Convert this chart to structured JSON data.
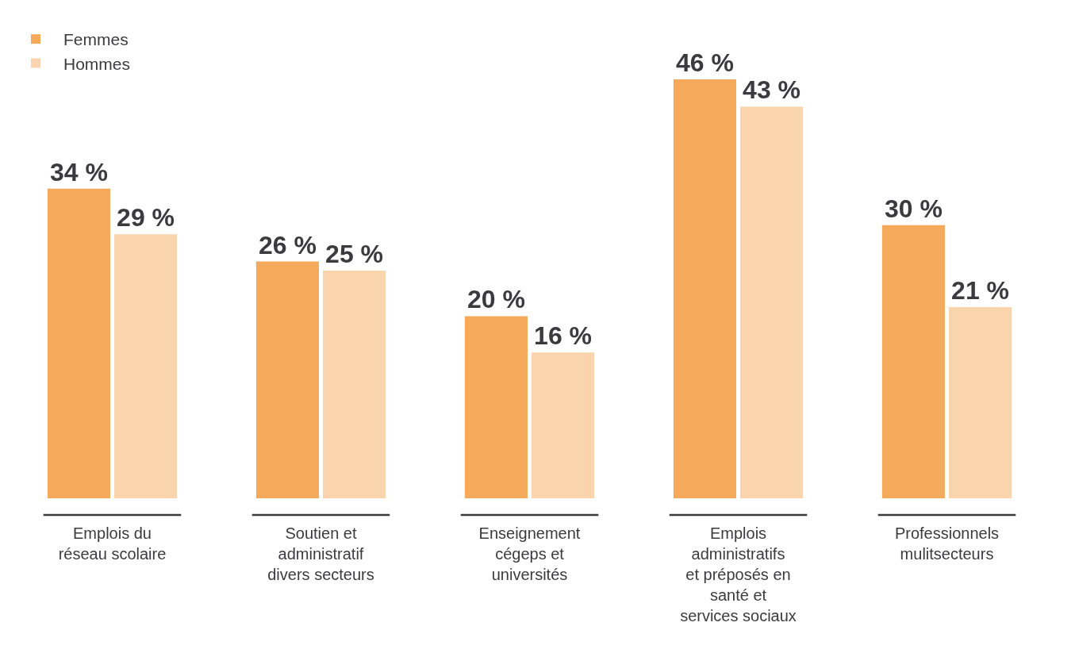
{
  "chart_data": {
    "type": "bar",
    "categories": [
      "Emplois du réseau scolaire",
      "Soutien et administratif divers secteurs",
      "Enseignement cégeps et universités",
      "Emplois administratifs et préposés en santé et services sociaux",
      "Professionnels mulitsecteurs"
    ],
    "series": [
      {
        "name": "Femmes",
        "color": "#f5a95b",
        "values": [
          34,
          26,
          20,
          46,
          30
        ],
        "value_labels": [
          "34 %",
          "26 %",
          "20 %",
          "46 %",
          "30 %"
        ]
      },
      {
        "name": "Hommes",
        "color": "#fad4ad",
        "values": [
          29,
          25,
          16,
          43,
          21
        ],
        "value_labels": [
          "29 %",
          "25 %",
          "16 %",
          "43 %",
          "21 %"
        ]
      }
    ],
    "legend": "top left"
  }
}
